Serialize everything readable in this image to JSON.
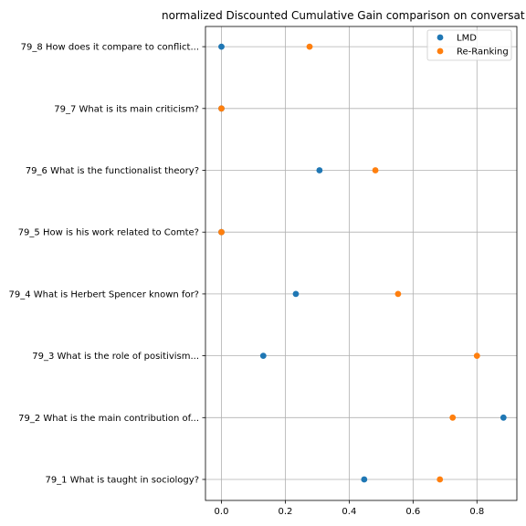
{
  "chart_data": {
    "type": "scatter",
    "title": "normalized Discounted Cumulative Gain comparison on conversat",
    "xlabel": "",
    "ylabel": "",
    "xlim": [
      -0.05,
      0.925
    ],
    "x_ticks": [
      0.0,
      0.2,
      0.4,
      0.6,
      0.8
    ],
    "x_tick_labels": [
      "0.0",
      "0.2",
      "0.4",
      "0.6",
      "0.8"
    ],
    "categories": [
      "79_1 What is taught in sociology?",
      "79_2 What is the main contribution of...",
      "79_3 What is the role of positivism...",
      "79_4 What is Herbert Spencer known for?",
      "79_5 How is his work related to Comte?",
      "79_6 What is the functionalist theory?",
      "79_7 What is its main criticism?",
      "79_8 How does it compare to conflict..."
    ],
    "series": [
      {
        "name": "LMD",
        "color": "#1f77b4",
        "values": [
          0.447,
          0.883,
          0.131,
          0.233,
          0.0,
          0.307,
          0.0,
          0.0
        ]
      },
      {
        "name": "Re-Ranking",
        "color": "#ff7f0e",
        "values": [
          0.684,
          0.724,
          0.8,
          0.553,
          0.0,
          0.482,
          0.0,
          0.276
        ]
      }
    ],
    "grid": true,
    "legend_position": "top-right"
  }
}
